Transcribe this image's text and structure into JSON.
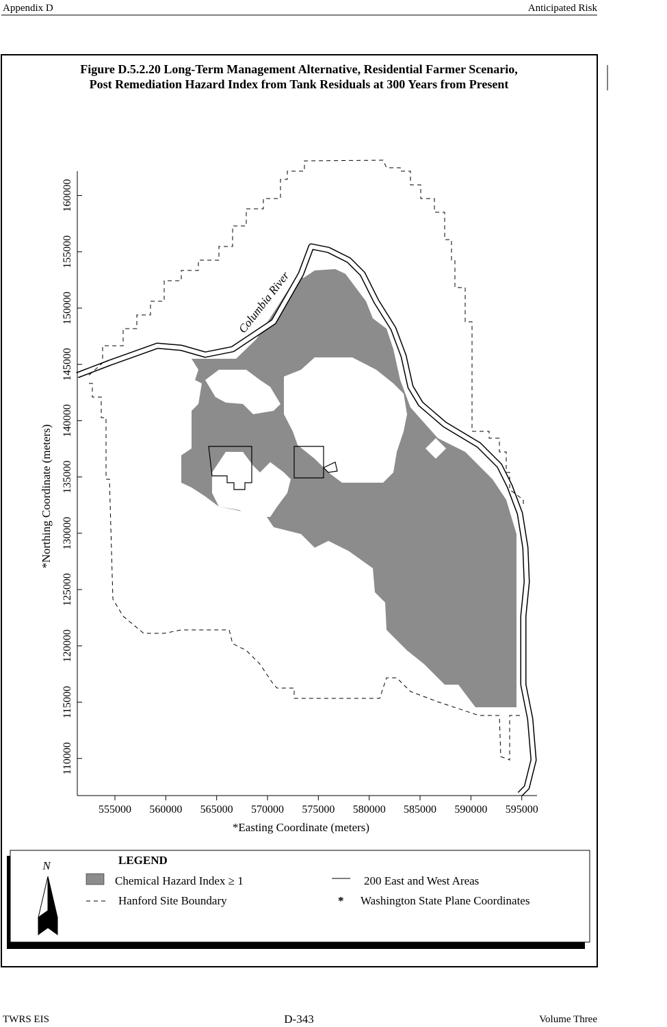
{
  "header": {
    "left": "Appendix D",
    "right": "Anticipated Risk"
  },
  "figure": {
    "title": [
      "Figure D.5.2.20  Long-Term Management Alternative, Residential Farmer Scenario,",
      "Post Remediation Hazard Index from Tank Residuals at 300 Years from Present"
    ],
    "xlim": [
      551300,
      596500
    ],
    "ylim": [
      106700,
      163500
    ],
    "xticks": [
      555000,
      560000,
      565000,
      570000,
      575000,
      580000,
      585000,
      590000,
      595000
    ],
    "yticks": [
      110000,
      115000,
      120000,
      125000,
      130000,
      135000,
      140000,
      145000,
      150000,
      155000,
      160000
    ],
    "x_label": "*Easting Coordinate (meters)",
    "y_label": "*Northing Coordinate (meters)",
    "river_label": "Columbia River"
  },
  "legend": {
    "title": "LEGEND",
    "north": "N",
    "items": [
      "Chemical Hazard Index ≥ 1",
      "200 East and West Areas",
      "Hanford Site Boundary"
    ],
    "note_marker": "*",
    "note": "Washington State Plane Coordinates"
  },
  "footer": {
    "left": "TWRS EIS",
    "center": "D-343",
    "right": "Volume Three"
  }
}
